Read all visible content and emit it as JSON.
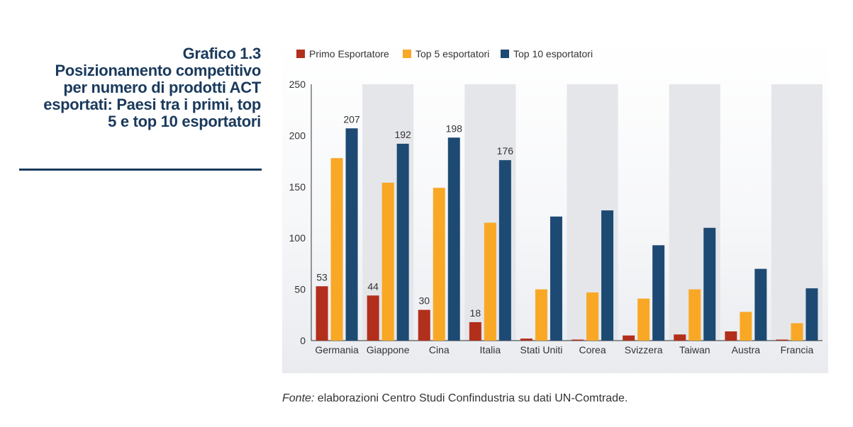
{
  "title": {
    "lines": [
      "Grafico 1.3",
      "Posizionamento competitivo",
      "per numero di prodotti ACT",
      "esportati: Paesi tra i primi, top",
      "5 e top 10 esportatori"
    ]
  },
  "source": {
    "label": "Fonte:",
    "text": " elaborazioni Centro Studi Confindustria su dati UN-Comtrade."
  },
  "colors": {
    "primo": "#b22f1c",
    "top5": "#f9a825",
    "top10": "#1d4a73",
    "band": "#e4e6ea",
    "title": "#1a3a5c"
  },
  "chart_data": {
    "type": "bar",
    "categories": [
      "Germania",
      "Giappone",
      "Cina",
      "Italia",
      "Stati Uniti",
      "Corea",
      "Svizzera",
      "Taiwan",
      "Austra",
      "Francia"
    ],
    "series": [
      {
        "name": "Primo Esportatore",
        "values": [
          53,
          44,
          30,
          18,
          2,
          1,
          5,
          6,
          9,
          1
        ],
        "labels": [
          "53",
          "44",
          "30",
          "18",
          "",
          "",
          "",
          "",
          "",
          ""
        ]
      },
      {
        "name": "Top 5 esportatori",
        "values": [
          178,
          154,
          149,
          115,
          50,
          47,
          41,
          50,
          28,
          17
        ],
        "labels": [
          "",
          "",
          "",
          "",
          "",
          "",
          "",
          "",
          "",
          ""
        ]
      },
      {
        "name": "Top 10 esportatori",
        "values": [
          207,
          192,
          198,
          176,
          121,
          127,
          93,
          110,
          70,
          51
        ],
        "labels": [
          "207",
          "192",
          "198",
          "176",
          "",
          "",
          "",
          "",
          "",
          ""
        ]
      }
    ],
    "yticks": [
      "0",
      "50",
      "100",
      "150",
      "200",
      "250"
    ],
    "ylim": [
      0,
      250
    ],
    "legend_position": "top-left",
    "grid": false
  }
}
